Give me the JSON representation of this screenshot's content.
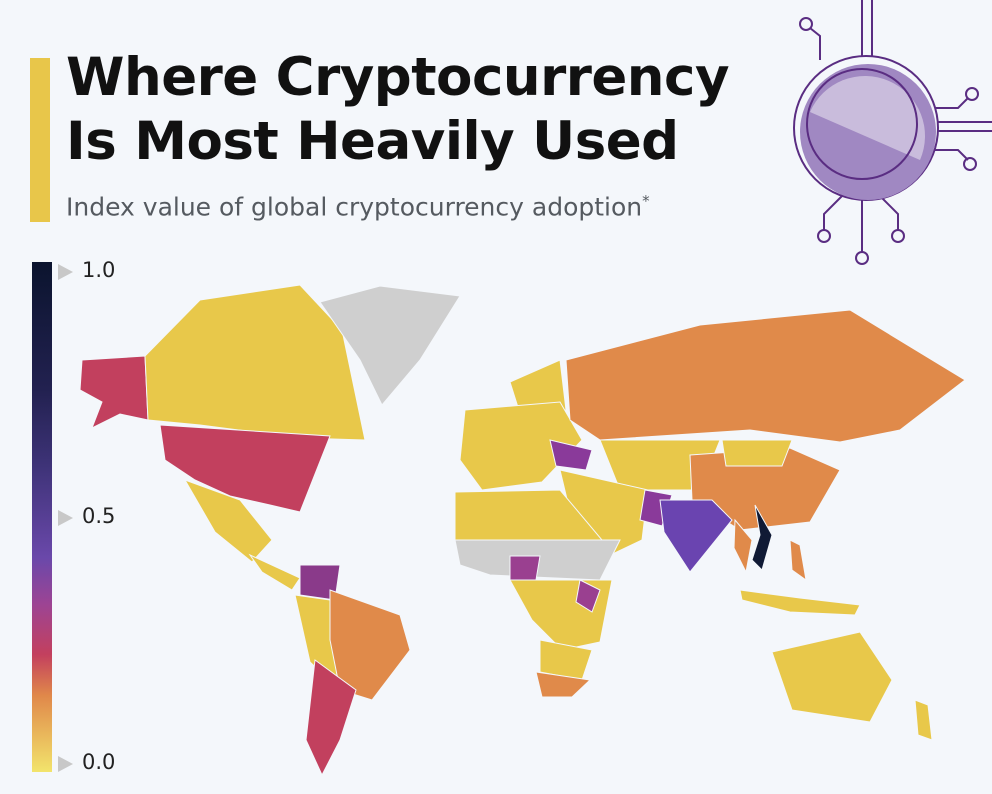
{
  "header": {
    "title_line1": "Where Cryptocurrency",
    "title_line2": "Is Most Heavily Used",
    "subtitle": "Index value of global cryptocurrency adoption",
    "footnote_marker": "*",
    "accent_color": "#e8c64a"
  },
  "legend": {
    "ticks": [
      "1.0",
      "0.5",
      "0.0"
    ],
    "range": [
      0.0,
      1.0
    ],
    "colors": [
      "#f2e46c",
      "#e0884a",
      "#c3405e",
      "#9c4494",
      "#6a48aa",
      "#0b142e"
    ]
  },
  "map": {
    "no_data_color": "#cfcfcf",
    "regions": [
      {
        "id": "vietnam",
        "value": 1.0,
        "color": "#101a35"
      },
      {
        "id": "india",
        "value": 0.57,
        "color": "#6a44b0"
      },
      {
        "id": "pakistan",
        "value": 0.4,
        "color": "#8a3a9a"
      },
      {
        "id": "ukraine",
        "value": 0.4,
        "color": "#8a3a9a"
      },
      {
        "id": "venezuela",
        "value": 0.4,
        "color": "#8a3a8a"
      },
      {
        "id": "nigeria",
        "value": 0.4,
        "color": "#9a4090"
      },
      {
        "id": "kenya",
        "value": 0.38,
        "color": "#9a4090"
      },
      {
        "id": "usa",
        "value": 0.3,
        "color": "#c2405e"
      },
      {
        "id": "argentina",
        "value": 0.3,
        "color": "#c2405e"
      },
      {
        "id": "russia",
        "value": 0.2,
        "color": "#e08a4a"
      },
      {
        "id": "china",
        "value": 0.2,
        "color": "#e08a4a"
      },
      {
        "id": "brazil",
        "value": 0.2,
        "color": "#e08a4a"
      },
      {
        "id": "thailand",
        "value": 0.2,
        "color": "#e08a4a"
      },
      {
        "id": "philippines",
        "value": 0.2,
        "color": "#e08a4a"
      },
      {
        "id": "south-africa",
        "value": 0.2,
        "color": "#e08a4a"
      },
      {
        "id": "others",
        "value": 0.05,
        "color": "#e8c84a"
      }
    ]
  },
  "icon": {
    "name": "crypto-coin-circuit-icon",
    "color": "#5a2d82"
  }
}
